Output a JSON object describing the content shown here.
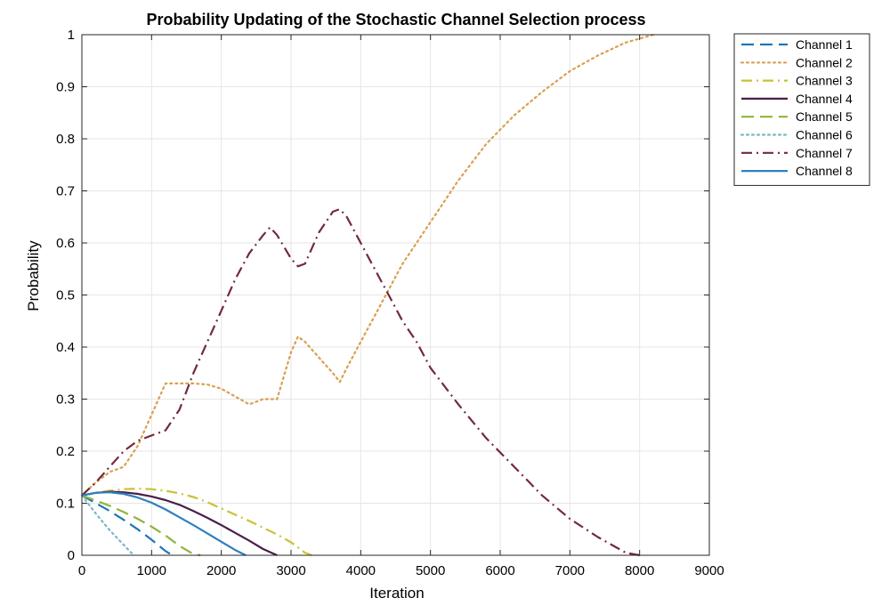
{
  "chart_data": {
    "type": "line",
    "title": "Probability Updating of the Stochastic Channel Selection process",
    "xlabel": "Iteration",
    "ylabel": "Probability",
    "xlim": [
      0,
      9000
    ],
    "ylim": [
      0,
      1
    ],
    "xticks": [
      0,
      1000,
      2000,
      3000,
      4000,
      5000,
      6000,
      7000,
      8000,
      9000
    ],
    "yticks": [
      0,
      0.1,
      0.2,
      0.3,
      0.4,
      0.5,
      0.6,
      0.7,
      0.8,
      0.9,
      1
    ],
    "grid": true,
    "legend_position": "outside-top-right",
    "series": [
      {
        "name": "Channel 1",
        "color": "#1f77b4",
        "style": "dashed",
        "x": [
          0,
          200,
          400,
          600,
          800,
          1000,
          1200,
          1300
        ],
        "y": [
          0.115,
          0.1,
          0.085,
          0.068,
          0.05,
          0.03,
          0.008,
          0
        ]
      },
      {
        "name": "Channel 2",
        "color": "#d9a050",
        "style": "dotted",
        "x": [
          0,
          200,
          400,
          600,
          800,
          1000,
          1200,
          1400,
          1600,
          1800,
          2000,
          2200,
          2400,
          2600,
          2800,
          3000,
          3100,
          3200,
          3400,
          3600,
          3700,
          3800,
          4000,
          4200,
          4400,
          4600,
          4800,
          5000,
          5400,
          5800,
          6200,
          6600,
          7000,
          7400,
          7800,
          8200
        ],
        "y": [
          0.115,
          0.14,
          0.16,
          0.17,
          0.21,
          0.27,
          0.33,
          0.33,
          0.33,
          0.328,
          0.32,
          0.305,
          0.29,
          0.3,
          0.3,
          0.39,
          0.42,
          0.41,
          0.38,
          0.35,
          0.333,
          0.36,
          0.41,
          0.46,
          0.51,
          0.56,
          0.6,
          0.64,
          0.72,
          0.79,
          0.845,
          0.89,
          0.93,
          0.96,
          0.985,
          1.0
        ]
      },
      {
        "name": "Channel 3",
        "color": "#c9c232",
        "style": "dashdot",
        "x": [
          0,
          200,
          400,
          600,
          800,
          1000,
          1200,
          1400,
          1600,
          1800,
          2000,
          2200,
          2400,
          2600,
          2800,
          3000,
          3100,
          3200,
          3300
        ],
        "y": [
          0.115,
          0.12,
          0.124,
          0.127,
          0.128,
          0.127,
          0.124,
          0.119,
          0.112,
          0.102,
          0.09,
          0.078,
          0.066,
          0.053,
          0.04,
          0.025,
          0.015,
          0.005,
          0
        ]
      },
      {
        "name": "Channel 4",
        "color": "#4a1f48",
        "style": "solid",
        "x": [
          0,
          200,
          400,
          600,
          800,
          1000,
          1200,
          1400,
          1600,
          1800,
          2000,
          2200,
          2400,
          2600,
          2800
        ],
        "y": [
          0.115,
          0.12,
          0.122,
          0.121,
          0.118,
          0.113,
          0.106,
          0.097,
          0.085,
          0.072,
          0.058,
          0.043,
          0.028,
          0.012,
          0
        ]
      },
      {
        "name": "Channel 5",
        "color": "#8fb43c",
        "style": "dashed",
        "x": [
          0,
          200,
          400,
          600,
          800,
          1000,
          1200,
          1400,
          1600,
          1700
        ],
        "y": [
          0.115,
          0.105,
          0.095,
          0.083,
          0.07,
          0.055,
          0.038,
          0.018,
          0.002,
          0
        ]
      },
      {
        "name": "Channel 6",
        "color": "#7ab8c8",
        "style": "dotted",
        "x": [
          0,
          200,
          400,
          600,
          700,
          750
        ],
        "y": [
          0.115,
          0.08,
          0.048,
          0.02,
          0.006,
          0
        ]
      },
      {
        "name": "Channel 7",
        "color": "#722a3a",
        "style": "dashdot",
        "x": [
          0,
          200,
          400,
          600,
          800,
          1000,
          1200,
          1400,
          1600,
          1800,
          2000,
          2200,
          2400,
          2600,
          2700,
          2800,
          3000,
          3100,
          3200,
          3400,
          3600,
          3700,
          3800,
          4000,
          4200,
          4400,
          4600,
          4800,
          5000,
          5400,
          5800,
          6200,
          6600,
          7000,
          7400,
          7800,
          8000
        ],
        "y": [
          0.115,
          0.14,
          0.17,
          0.2,
          0.22,
          0.23,
          0.24,
          0.28,
          0.35,
          0.41,
          0.47,
          0.53,
          0.58,
          0.615,
          0.63,
          0.615,
          0.57,
          0.555,
          0.56,
          0.62,
          0.66,
          0.665,
          0.65,
          0.6,
          0.55,
          0.5,
          0.45,
          0.41,
          0.36,
          0.29,
          0.225,
          0.17,
          0.115,
          0.07,
          0.035,
          0.005,
          0
        ]
      },
      {
        "name": "Channel 8",
        "color": "#2f7fbf",
        "style": "solid",
        "x": [
          0,
          200,
          400,
          600,
          800,
          1000,
          1200,
          1400,
          1600,
          1800,
          2000,
          2200,
          2350
        ],
        "y": [
          0.115,
          0.12,
          0.121,
          0.118,
          0.111,
          0.101,
          0.088,
          0.073,
          0.058,
          0.042,
          0.026,
          0.01,
          0
        ]
      }
    ]
  }
}
